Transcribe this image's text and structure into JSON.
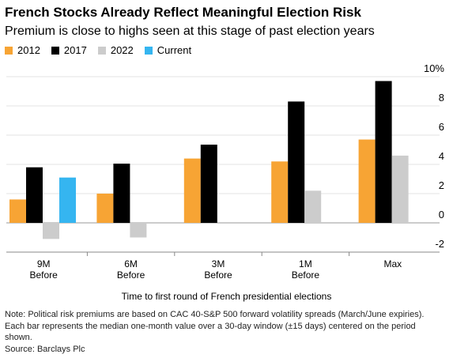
{
  "chart_data": {
    "type": "bar",
    "title": "French Stocks Already Reflect Meaningful Election Risk",
    "subtitle": "Premium is close to highs seen at this stage of past election years",
    "categories": [
      "9M Before",
      "6M Before",
      "3M Before",
      "1M Before",
      "Max"
    ],
    "series": [
      {
        "name": "2012",
        "color": "#f7a434",
        "values": [
          1.6,
          2.0,
          4.4,
          4.2,
          5.7
        ]
      },
      {
        "name": "2017",
        "color": "#000000",
        "values": [
          3.8,
          4.05,
          5.35,
          8.3,
          9.7
        ]
      },
      {
        "name": "2022",
        "color": "#cccccc",
        "values": [
          -1.1,
          -1.0,
          null,
          2.2,
          4.6
        ]
      },
      {
        "name": "Current",
        "color": "#35b5f0",
        "values": [
          3.1,
          null,
          null,
          null,
          null
        ]
      }
    ],
    "ylim": [
      -2,
      10
    ],
    "yticks": [
      -2,
      0,
      2,
      4,
      6,
      {
        "value": 8,
        "label": "8"
      },
      {
        "value": 10,
        "label": "10%"
      }
    ],
    "grid": true,
    "xlabel": "Time to first round of French presidential elections",
    "notes": [
      "Note: Political risk premiums are based on CAC 40-S&P 500 forward volatility spreads (March/June expiries).",
      "Each bar represents the median one-month value over a 30-day window (±15 days) centered on the period",
      "shown.",
      "Source: Barclays Plc"
    ]
  }
}
